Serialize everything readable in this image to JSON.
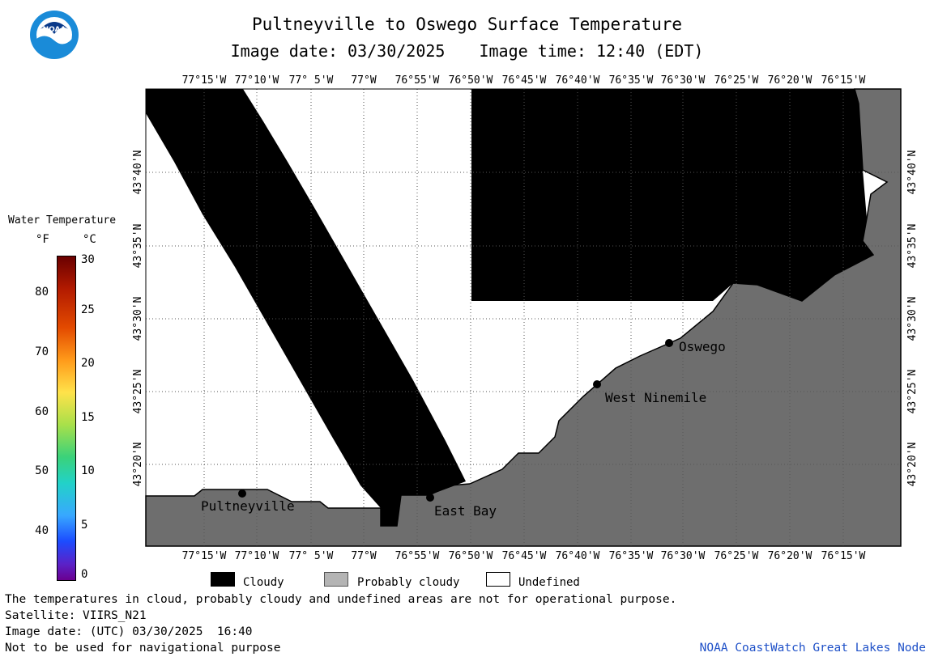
{
  "title": {
    "line1": "Pultneyville to Oswego Surface Temperature",
    "image_date_label": "Image date: 03/30/2025",
    "image_time_label": "Image time: 12:40 (EDT)"
  },
  "logo": {
    "text": "NOAA"
  },
  "colorbar": {
    "title": "Water Temperature",
    "unit_f": "°F",
    "unit_c": "°C",
    "f_ticks": [
      "80",
      "70",
      "60",
      "50",
      "40"
    ],
    "c_ticks": [
      "30",
      "25",
      "20",
      "15",
      "10",
      "5",
      "0"
    ]
  },
  "map": {
    "lon_labels": [
      "77°15'W",
      "77°10'W",
      "77° 5'W",
      "77°W",
      "76°55'W",
      "76°50'W",
      "76°45'W",
      "76°40'W",
      "76°35'W",
      "76°30'W",
      "76°25'W",
      "76°20'W",
      "76°15'W"
    ],
    "lat_labels": [
      "43°40'N",
      "43°35'N",
      "43°30'N",
      "43°25'N",
      "43°20'N"
    ],
    "places": [
      {
        "name": "Pultneyville"
      },
      {
        "name": "East Bay"
      },
      {
        "name": "West Ninemile"
      },
      {
        "name": "Oswego"
      }
    ],
    "colors": {
      "cloud": "#000000",
      "land": "#6e6e6e",
      "undefined": "#ffffff"
    }
  },
  "legend": {
    "cloudy": "Cloudy",
    "probably_cloudy": "Probably cloudy",
    "undefined": "Undefined"
  },
  "footer": {
    "note": "The temperatures in cloud, probably cloudy and undefined areas are not for operational purpose.",
    "satellite": "Satellite: VIIRS_N21",
    "image_date_utc": "Image date: (UTC) 03/30/2025  16:40",
    "nav_warning": "Not to be used for navigational purpose",
    "credit": "NOAA CoastWatch Great Lakes Node"
  }
}
